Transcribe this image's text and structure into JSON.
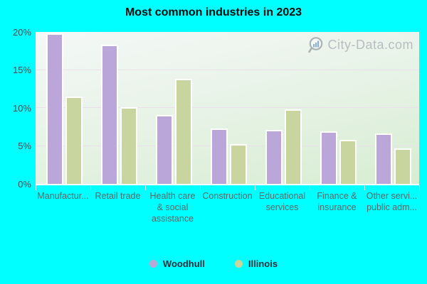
{
  "chart_data": {
    "type": "bar",
    "title": "Most common industries in 2023",
    "categories": [
      "Manufacturing",
      "Retail trade",
      "Health care & social assistance",
      "Construction",
      "Educational services",
      "Finance & insurance",
      "Other services, public administration"
    ],
    "category_label_lines": [
      [
        "Manufactur..."
      ],
      [
        "Retail trade"
      ],
      [
        "Health care",
        "& social",
        "assistance"
      ],
      [
        "Construction"
      ],
      [
        "Educational",
        "services"
      ],
      [
        "Finance &",
        "insurance"
      ],
      [
        "Other servi...",
        "public adm..."
      ]
    ],
    "series": [
      {
        "name": "Woodhull",
        "color": "#bba6da",
        "values": [
          19.8,
          18.3,
          9.1,
          7.3,
          7.1,
          6.9,
          6.6
        ]
      },
      {
        "name": "Illinois",
        "color": "#c8d59e",
        "values": [
          11.5,
          10.1,
          13.8,
          5.2,
          9.8,
          5.8,
          4.7
        ]
      }
    ],
    "xlabel": "",
    "ylabel": "",
    "ylim": [
      0,
      20
    ],
    "yticks": [
      0,
      5,
      10,
      15,
      20
    ],
    "ytick_format": "{v}%",
    "grid": true,
    "legend_position": "bottom",
    "watermark": "City-Data.com"
  }
}
